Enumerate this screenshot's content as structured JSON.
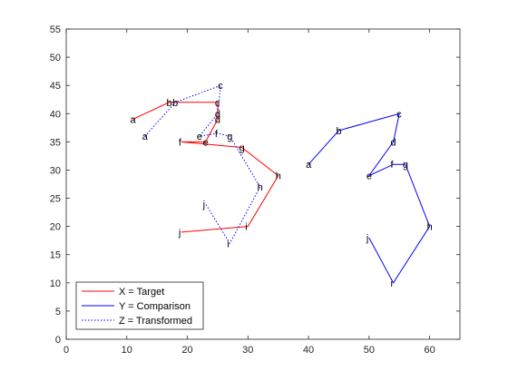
{
  "chart_data": {
    "type": "line",
    "xlim": [
      0,
      65
    ],
    "ylim": [
      0,
      55
    ],
    "x_ticks": [
      0,
      10,
      20,
      30,
      40,
      50,
      60
    ],
    "y_ticks": [
      0,
      5,
      10,
      15,
      20,
      25,
      30,
      35,
      40,
      45,
      50,
      55
    ],
    "grid": false,
    "legend_position": "bottom-left",
    "series": [
      {
        "name": "X = Target",
        "color": "#ff0000",
        "line_style": "solid",
        "points": [
          {
            "label": "a",
            "x": 11,
            "y": 39
          },
          {
            "label": "b",
            "x": 17,
            "y": 42
          },
          {
            "label": "c",
            "x": 25,
            "y": 42
          },
          {
            "label": "d",
            "x": 25,
            "y": 39
          },
          {
            "label": "e",
            "x": 23,
            "y": 35
          },
          {
            "label": "f",
            "x": 19,
            "y": 35
          },
          {
            "label": "g",
            "x": 29,
            "y": 34
          },
          {
            "label": "h",
            "x": 35,
            "y": 29
          },
          {
            "label": "i",
            "x": 30,
            "y": 20
          },
          {
            "label": "j",
            "x": 19,
            "y": 19
          }
        ]
      },
      {
        "name": "Y = Comparison",
        "color": "#0000ff",
        "line_style": "solid",
        "points": [
          {
            "label": "a",
            "x": 40,
            "y": 31
          },
          {
            "label": "b",
            "x": 45,
            "y": 37
          },
          {
            "label": "c",
            "x": 55,
            "y": 40
          },
          {
            "label": "d",
            "x": 54,
            "y": 35
          },
          {
            "label": "e",
            "x": 50,
            "y": 29
          },
          {
            "label": "f",
            "x": 54,
            "y": 31
          },
          {
            "label": "g",
            "x": 56,
            "y": 31
          },
          {
            "label": "h",
            "x": 60,
            "y": 20
          },
          {
            "label": "i",
            "x": 54,
            "y": 10
          },
          {
            "label": "j",
            "x": 50,
            "y": 18
          }
        ]
      },
      {
        "name": "Z = Transformed",
        "color": "#0000ff",
        "line_style": "dotted",
        "points": [
          {
            "label": "a",
            "x": 13,
            "y": 36
          },
          {
            "label": "b",
            "x": 18,
            "y": 42
          },
          {
            "label": "c",
            "x": 25.5,
            "y": 45
          },
          {
            "label": "d",
            "x": 25,
            "y": 40
          },
          {
            "label": "e",
            "x": 22,
            "y": 36
          },
          {
            "label": "f",
            "x": 25,
            "y": 36.5
          },
          {
            "label": "g",
            "x": 27,
            "y": 36
          },
          {
            "label": "h",
            "x": 32,
            "y": 27
          },
          {
            "label": "i",
            "x": 27,
            "y": 17
          },
          {
            "label": "j",
            "x": 23,
            "y": 24
          }
        ]
      }
    ]
  }
}
